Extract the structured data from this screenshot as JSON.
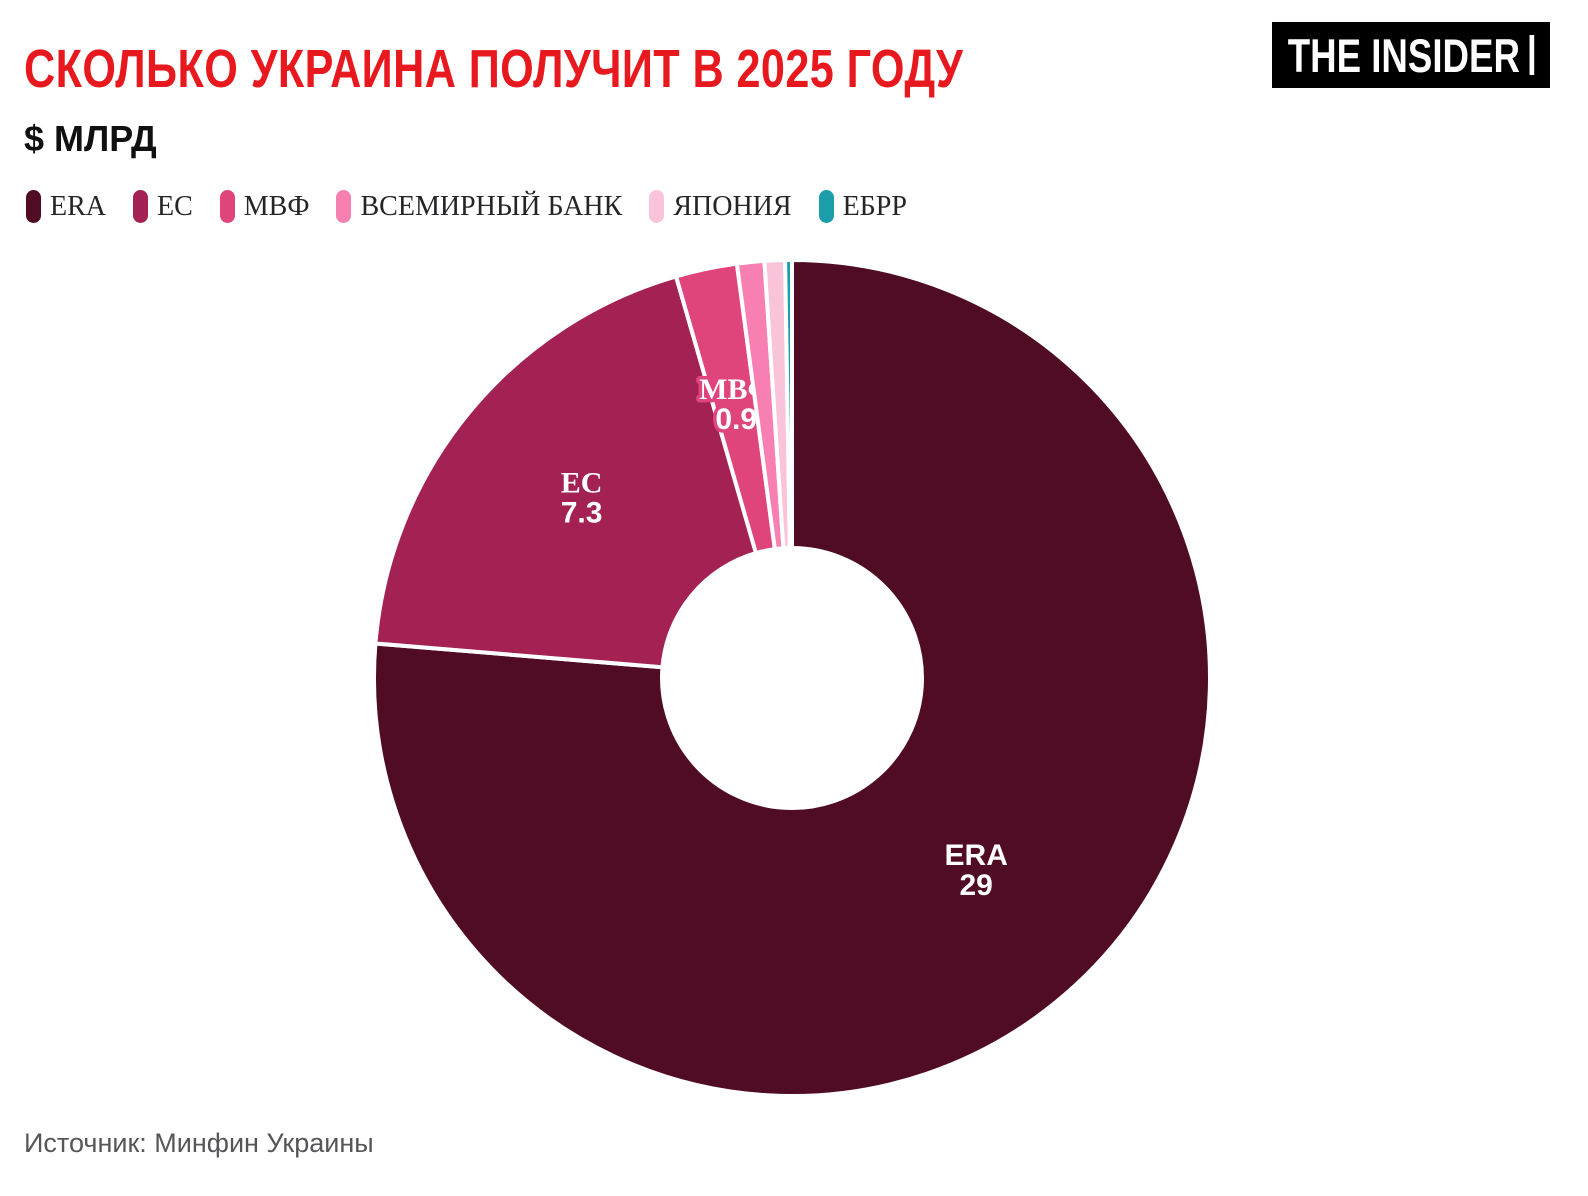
{
  "header": {
    "title": "СКОЛЬКО УКРАИНА ПОЛУЧИТ В 2025 ГОДУ",
    "subtitle": "$ МЛРД",
    "logo_text": "THE INSIDER"
  },
  "chart_data": {
    "type": "pie",
    "subtype": "donut",
    "title": "СКОЛЬКО УКРАИНА ПОЛУЧИТ В 2025 ГОДУ",
    "unit": "$ млрд",
    "start_angle_deg": 0,
    "direction": "clockwise",
    "legend_position": "top-left",
    "slices": [
      {
        "id": "era",
        "name": "ERA",
        "value": 29,
        "color": "#500c24",
        "label": {
          "name": "ERA",
          "value": "29"
        },
        "label_font": "sans"
      },
      {
        "id": "ec",
        "name": "ЕС",
        "value": 7.3,
        "color": "#a32253",
        "label": {
          "name": "ЕС",
          "value": "7.3"
        },
        "label_font": "serif"
      },
      {
        "id": "mvf",
        "name": "МВФ",
        "value": 0.9,
        "color": "#e0447d",
        "label": {
          "name": "МВФ",
          "value": "0.9"
        },
        "label_font": "serif",
        "halo": true
      },
      {
        "id": "world-bank",
        "name": "ВСЕМИРНЫЙ БАНК",
        "value": 0.4,
        "color": "#f77fb1"
      },
      {
        "id": "japan",
        "name": "ЯПОНИЯ",
        "value": 0.3,
        "color": "#f9c4d9"
      },
      {
        "id": "ebrd",
        "name": "ЕБРР",
        "value": 0.1,
        "color": "#1b9daa"
      }
    ]
  },
  "footer": {
    "source": "Источник: Минфин Украины"
  }
}
